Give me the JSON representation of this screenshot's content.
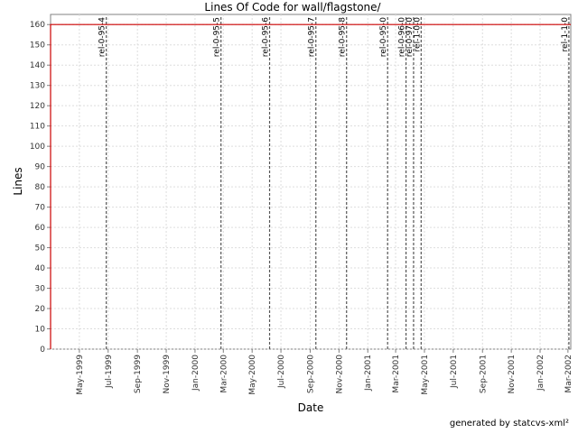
{
  "chart_data": {
    "type": "line",
    "title": "Lines Of Code for wall/flagstone/",
    "xlabel": "Date",
    "ylabel": "Lines",
    "ylim": [
      0,
      165
    ],
    "yticks": [
      0,
      10,
      20,
      30,
      40,
      50,
      60,
      70,
      80,
      90,
      100,
      110,
      120,
      130,
      140,
      150,
      160
    ],
    "xlim": [
      "1999-03-01",
      "2002-03-07"
    ],
    "xtick_labels": [
      {
        "date": "1999-05-01",
        "label": "May-1999"
      },
      {
        "date": "1999-07-01",
        "label": "Jul-1999"
      },
      {
        "date": "1999-09-01",
        "label": "Sep-1999"
      },
      {
        "date": "1999-11-01",
        "label": "Nov-1999"
      },
      {
        "date": "2000-01-01",
        "label": "Jan-2000"
      },
      {
        "date": "2000-03-01",
        "label": "Mar-2000"
      },
      {
        "date": "2000-05-01",
        "label": "May-2000"
      },
      {
        "date": "2000-07-01",
        "label": "Jul-2000"
      },
      {
        "date": "2000-09-01",
        "label": "Sep-2000"
      },
      {
        "date": "2000-11-01",
        "label": "Nov-2000"
      },
      {
        "date": "2001-01-01",
        "label": "Jan-2001"
      },
      {
        "date": "2001-03-01",
        "label": "Mar-2001"
      },
      {
        "date": "2001-05-01",
        "label": "May-2001"
      },
      {
        "date": "2001-07-01",
        "label": "Jul-2001"
      },
      {
        "date": "2001-09-01",
        "label": "Sep-2001"
      },
      {
        "date": "2001-11-01",
        "label": "Nov-2001"
      },
      {
        "date": "2002-01-01",
        "label": "Jan-2002"
      },
      {
        "date": "2002-03-01",
        "label": "Mar-2002"
      }
    ],
    "grid": true,
    "series": [
      {
        "color": "#cc0000",
        "points": [
          {
            "x": "1999-03-01",
            "y": 0
          },
          {
            "x": "1999-03-01",
            "y": 160
          },
          {
            "x": "2002-03-07",
            "y": 160
          }
        ]
      }
    ],
    "symbolic_tags": [
      {
        "date": "1999-06-27",
        "label": "rel-0-95-4"
      },
      {
        "date": "2000-02-25",
        "label": "rel-0-95-5"
      },
      {
        "date": "2000-06-07",
        "label": "rel-0-95-6"
      },
      {
        "date": "2000-09-13",
        "label": "rel-0-95-7"
      },
      {
        "date": "2000-11-17",
        "label": "rel-0-95-8"
      },
      {
        "date": "2001-02-12",
        "label": "rel-0-95-0"
      },
      {
        "date": "2001-03-23",
        "label": "rel-0-96-0"
      },
      {
        "date": "2001-04-08",
        "label": "rel-0-97-0"
      },
      {
        "date": "2001-04-24",
        "label": "rel-1-0-0"
      },
      {
        "date": "2002-03-03",
        "label": "rel-1-1-0"
      }
    ]
  },
  "footer": "generated by statcvs-xml²"
}
